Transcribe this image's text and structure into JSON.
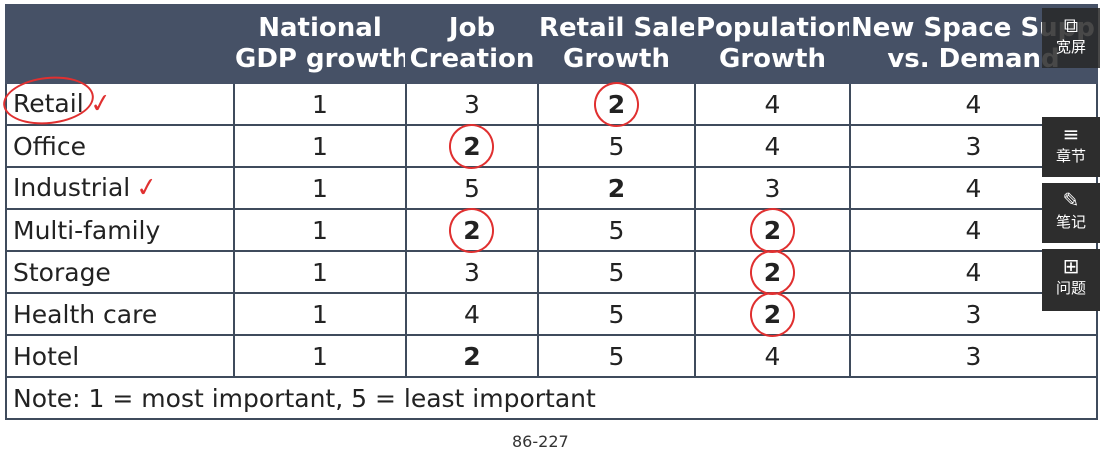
{
  "table": {
    "headers": [
      "",
      "National GDP growth",
      "Job Creation",
      "Retail Sales Growth",
      "Population Growth",
      "New Space Supply vs. Demand"
    ],
    "header_lines": [
      [
        "",
        ""
      ],
      [
        "National",
        "GDP growth"
      ],
      [
        "Job",
        "Creation"
      ],
      [
        "Retail Sales",
        "Growth"
      ],
      [
        "Population",
        "Growth"
      ],
      [
        "New Space Supply",
        "vs. Demand"
      ]
    ],
    "rows": [
      {
        "label": "Retail",
        "values": [
          "1",
          "3",
          "2",
          "4",
          "4"
        ]
      },
      {
        "label": "Office",
        "values": [
          "1",
          "2",
          "5",
          "4",
          "3"
        ]
      },
      {
        "label": "Industrial",
        "values": [
          "1",
          "5",
          "2",
          "3",
          "4"
        ]
      },
      {
        "label": "Multi-family",
        "values": [
          "1",
          "2",
          "5",
          "2",
          "4"
        ]
      },
      {
        "label": "Storage",
        "values": [
          "1",
          "3",
          "5",
          "2",
          "4"
        ]
      },
      {
        "label": "Health care",
        "values": [
          "1",
          "4",
          "5",
          "2",
          "3"
        ]
      },
      {
        "label": "Hotel",
        "values": [
          "1",
          "2",
          "5",
          "4",
          "3"
        ]
      }
    ],
    "note": "Note: 1 = most important, 5 = least important"
  },
  "side_panel": {
    "wide": {
      "label": "宽屏",
      "icon": "fullscreen-icon"
    },
    "chapter": {
      "label": "章节",
      "icon": "menu-icon"
    },
    "notes": {
      "label": "笔记",
      "icon": "pencil-icon"
    },
    "question": {
      "label": "问题",
      "icon": "plus-chat-icon"
    }
  },
  "page_number": "86-227",
  "annotation_color": "#e03030",
  "header_color": "#465166"
}
